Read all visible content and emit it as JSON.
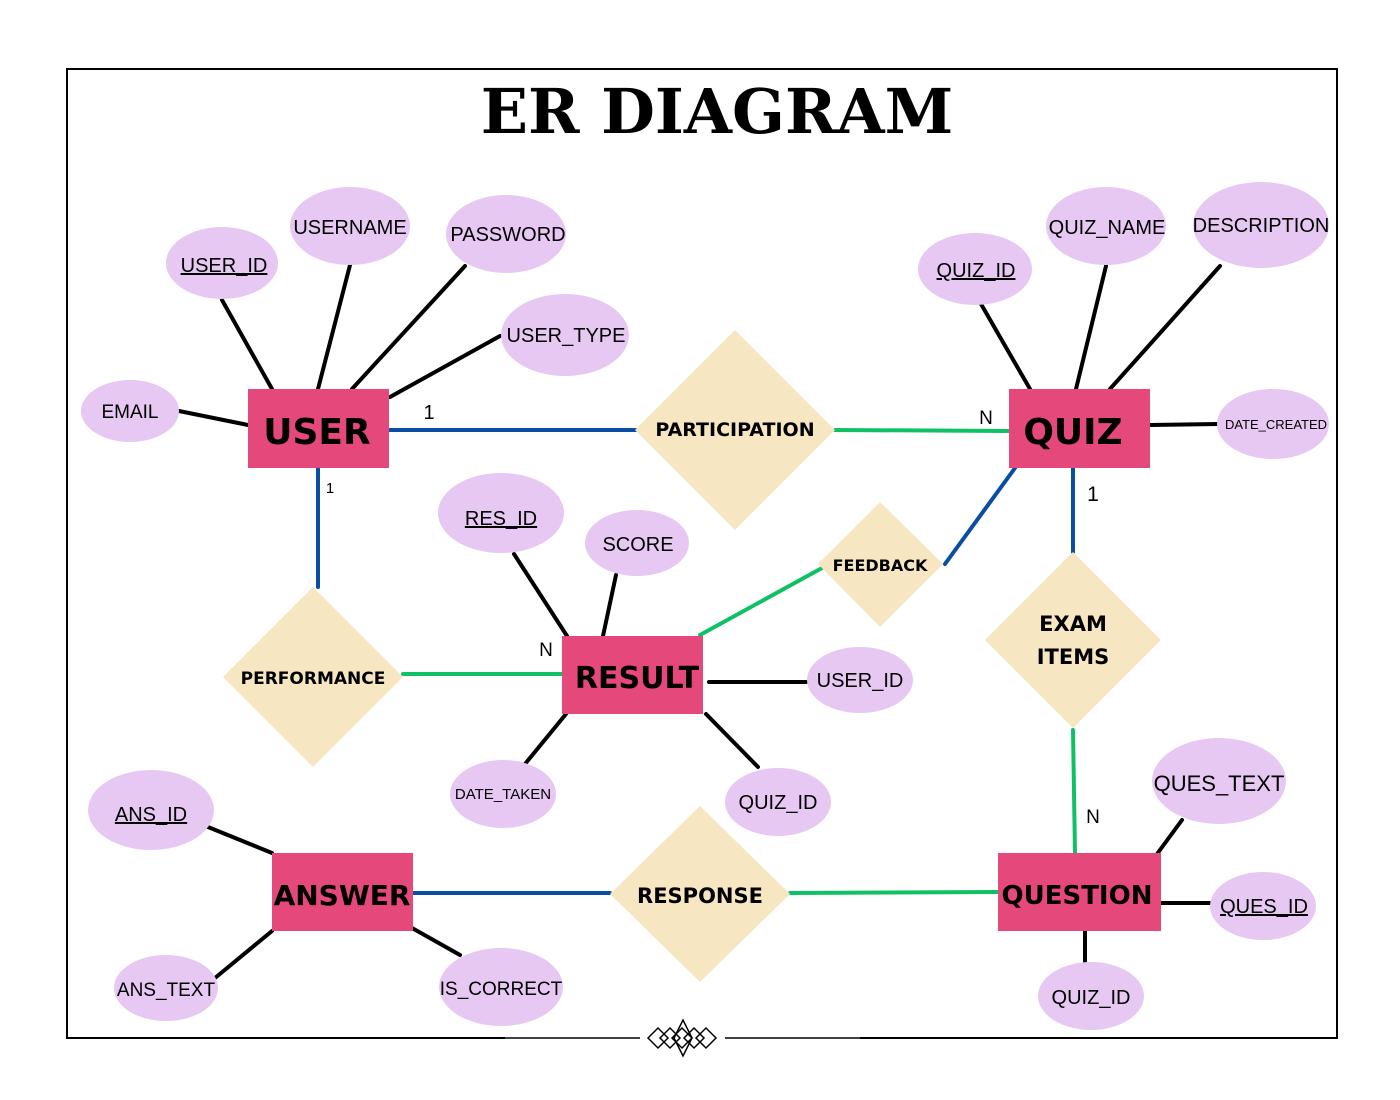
{
  "title": "ER DIAGRAM",
  "colors": {
    "entity": "#e5487a",
    "relationship": "#f7e6c2",
    "attribute": "#e6c8f2",
    "line_black": "#000000",
    "line_blue": "#0a4ea3",
    "line_green": "#10c065"
  },
  "entities": {
    "user": "USER",
    "quiz": "QUIZ",
    "result": "RESULT",
    "answer": "ANSWER",
    "question": "QUESTION"
  },
  "relationships": {
    "participation": "PARTICIPATION",
    "feedback": "FEEDBACK",
    "performance": "PERFORMANCE",
    "exam_items_1": "EXAM",
    "exam_items_2": "ITEMS",
    "response": "RESPONSE"
  },
  "attributes": {
    "user_id": "USER_ID",
    "username": "USERNAME",
    "password": "PASSWORD",
    "user_type": "USER_TYPE",
    "email": "EMAIL",
    "quiz_id": "QUIZ_ID",
    "quiz_name": "QUIZ_NAME",
    "description": "DESCRIPTION",
    "date_created": "DATE_CREATED",
    "res_id": "RES_ID",
    "score": "SCORE",
    "result_user_id": "USER_ID",
    "date_taken": "DATE_TAKEN",
    "result_quiz_id": "QUIZ_ID",
    "ans_id": "ANS_ID",
    "ans_text": "ANS_TEXT",
    "is_correct": "IS_CORRECT",
    "ques_text": "QUES_TEXT",
    "ques_id": "QUES_ID",
    "question_quiz_id": "QUIZ_ID"
  },
  "cardinality": {
    "user_participation": "1",
    "quiz_participation": "N",
    "user_performance": "1",
    "result_performance": "N",
    "quiz_exam": "1",
    "question_exam": "N"
  }
}
